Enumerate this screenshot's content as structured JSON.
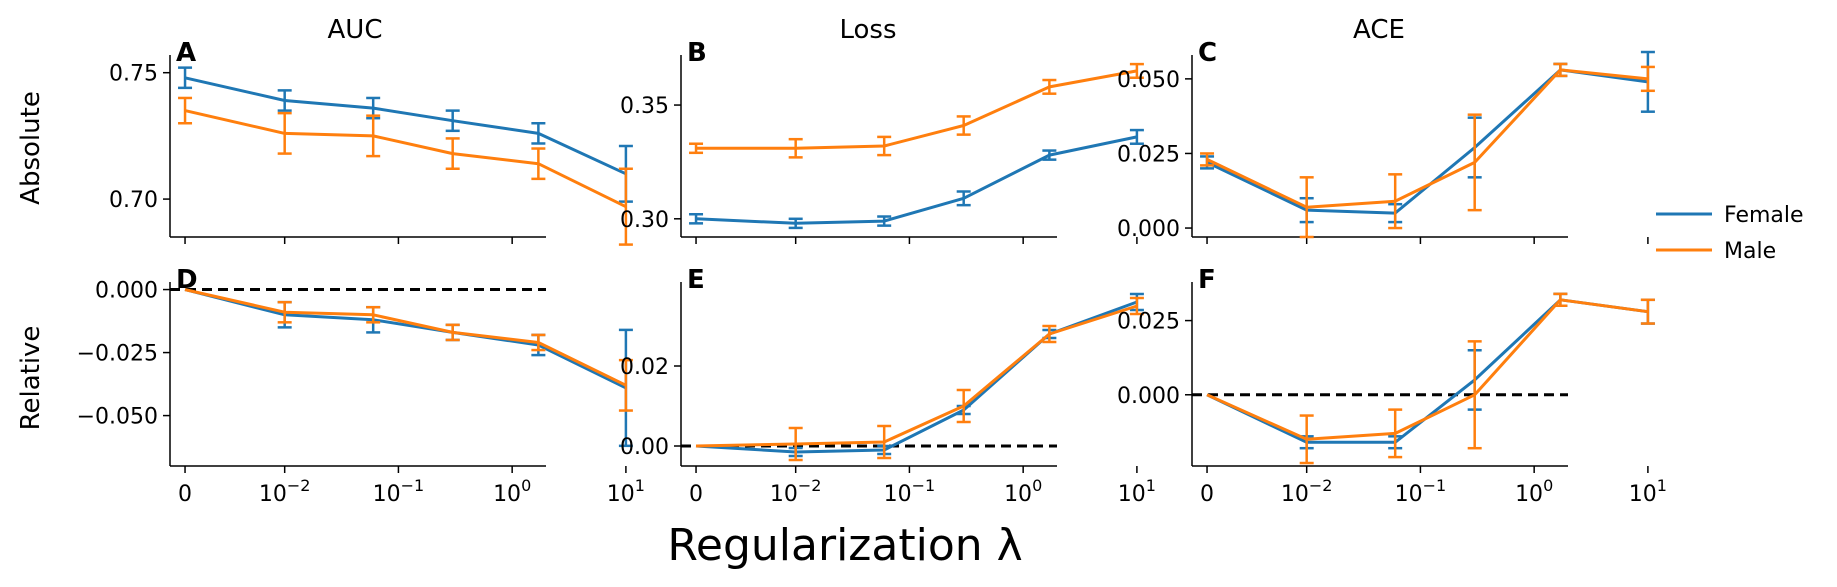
{
  "figure": {
    "column_titles": [
      "AUC",
      "Loss",
      "ACE"
    ],
    "row_labels": [
      "Absolute",
      "Relative"
    ],
    "xlabel": "Regularization λ"
  },
  "legend": {
    "entries": [
      {
        "label": "Female",
        "color": "#1f77b4"
      },
      {
        "label": "Male",
        "color": "#ff7f0e"
      }
    ]
  },
  "colors": {
    "Female": "#1f77b4",
    "Male": "#ff7f0e",
    "reference_line": "#000000"
  },
  "chart_data": [
    {
      "type": "line",
      "letter": "A",
      "title": "AUC",
      "row": "Absolute",
      "x": [
        0,
        0.01,
        0.06,
        0.3,
        1.7,
        10
      ],
      "xticklabels": [
        "0",
        "10^-2",
        "10^-1",
        "10^0",
        "10^1"
      ],
      "ylim": [
        0.685,
        0.757
      ],
      "yticks": [
        0.7,
        0.75
      ],
      "yticklabels": [
        "0.70",
        "0.75"
      ],
      "series": [
        {
          "name": "Female",
          "values": [
            0.748,
            0.739,
            0.736,
            0.731,
            0.726,
            0.71
          ],
          "err": [
            0.004,
            0.004,
            0.004,
            0.004,
            0.004,
            0.011
          ]
        },
        {
          "name": "Male",
          "values": [
            0.735,
            0.726,
            0.725,
            0.718,
            0.714,
            0.697
          ],
          "err": [
            0.005,
            0.008,
            0.008,
            0.006,
            0.006,
            0.015
          ]
        }
      ]
    },
    {
      "type": "line",
      "letter": "B",
      "title": "Loss",
      "row": "Absolute",
      "x": [
        0,
        0.01,
        0.06,
        0.3,
        1.7,
        10
      ],
      "xticklabels": [
        "0",
        "10^-2",
        "10^-1",
        "10^0",
        "10^1"
      ],
      "ylim": [
        0.292,
        0.372
      ],
      "yticks": [
        0.3,
        0.35
      ],
      "yticklabels": [
        "0.30",
        "0.35"
      ],
      "series": [
        {
          "name": "Female",
          "values": [
            0.3,
            0.298,
            0.299,
            0.309,
            0.328,
            0.336
          ],
          "err": [
            0.002,
            0.002,
            0.002,
            0.003,
            0.002,
            0.003
          ]
        },
        {
          "name": "Male",
          "values": [
            0.331,
            0.331,
            0.332,
            0.341,
            0.358,
            0.365
          ],
          "err": [
            0.002,
            0.004,
            0.004,
            0.004,
            0.003,
            0.003
          ]
        }
      ]
    },
    {
      "type": "line",
      "letter": "C",
      "title": "ACE",
      "row": "Absolute",
      "x": [
        0,
        0.01,
        0.06,
        0.3,
        1.7,
        10
      ],
      "xticklabels": [
        "0",
        "10^-2",
        "10^-1",
        "10^0",
        "10^1"
      ],
      "ylim": [
        -0.003,
        0.058
      ],
      "yticks": [
        0.0,
        0.025,
        0.05
      ],
      "yticklabels": [
        "0.000",
        "0.025",
        "0.050"
      ],
      "series": [
        {
          "name": "Female",
          "values": [
            0.022,
            0.006,
            0.005,
            0.027,
            0.053,
            0.049
          ],
          "err": [
            0.002,
            0.004,
            0.003,
            0.01,
            0.002,
            0.01
          ]
        },
        {
          "name": "Male",
          "values": [
            0.023,
            0.007,
            0.009,
            0.022,
            0.053,
            0.05
          ],
          "err": [
            0.002,
            0.01,
            0.009,
            0.016,
            0.002,
            0.004
          ]
        }
      ]
    },
    {
      "type": "line",
      "letter": "D",
      "row": "Relative",
      "x": [
        0,
        0.01,
        0.06,
        0.3,
        1.7,
        10
      ],
      "xticklabels": [
        "0",
        "10^-2",
        "10^-1",
        "10^0",
        "10^1"
      ],
      "ylim": [
        -0.07,
        0.003
      ],
      "yticks": [
        -0.05,
        -0.025,
        0.0
      ],
      "yticklabels": [
        "−0.050",
        "−0.025",
        "0.000"
      ],
      "reference_y": 0,
      "series": [
        {
          "name": "Female",
          "values": [
            0.0,
            -0.01,
            -0.012,
            -0.017,
            -0.022,
            -0.039
          ],
          "err": [
            0.0,
            0.005,
            0.005,
            0.003,
            0.004,
            0.023
          ]
        },
        {
          "name": "Male",
          "values": [
            0.0,
            -0.009,
            -0.01,
            -0.017,
            -0.021,
            -0.038
          ],
          "err": [
            0.0,
            0.004,
            0.003,
            0.003,
            0.003,
            0.01
          ]
        }
      ]
    },
    {
      "type": "line",
      "letter": "E",
      "row": "Relative",
      "x": [
        0,
        0.01,
        0.06,
        0.3,
        1.7,
        10
      ],
      "xticklabels": [
        "0",
        "10^-2",
        "10^-1",
        "10^0",
        "10^1"
      ],
      "ylim": [
        -0.005,
        0.041
      ],
      "yticks": [
        0.0,
        0.02
      ],
      "yticklabels": [
        "0.00",
        "0.02"
      ],
      "reference_y": 0,
      "series": [
        {
          "name": "Female",
          "values": [
            0.0,
            -0.0015,
            -0.001,
            0.009,
            0.028,
            0.036
          ],
          "err": [
            0.0,
            0.001,
            0.001,
            0.001,
            0.001,
            0.002
          ]
        },
        {
          "name": "Male",
          "values": [
            0.0,
            0.0005,
            0.001,
            0.01,
            0.028,
            0.035
          ],
          "err": [
            0.0,
            0.004,
            0.004,
            0.004,
            0.002,
            0.002
          ]
        }
      ]
    },
    {
      "type": "line",
      "letter": "F",
      "row": "Relative",
      "x": [
        0,
        0.01,
        0.06,
        0.3,
        1.7,
        10
      ],
      "xticklabels": [
        "0",
        "10^-2",
        "10^-1",
        "10^0",
        "10^1"
      ],
      "ylim": [
        -0.024,
        0.038
      ],
      "yticks": [
        0.0,
        0.025
      ],
      "yticklabels": [
        "0.000",
        "0.025"
      ],
      "reference_y": 0,
      "series": [
        {
          "name": "Female",
          "values": [
            0.0,
            -0.016,
            -0.016,
            0.005,
            0.032,
            0.028
          ],
          "err": [
            0.0,
            0.002,
            0.002,
            0.01,
            0.002,
            0.004
          ]
        },
        {
          "name": "Male",
          "values": [
            0.0,
            -0.015,
            -0.013,
            0.0,
            0.032,
            0.028
          ],
          "err": [
            0.0,
            0.008,
            0.008,
            0.018,
            0.002,
            0.004
          ]
        }
      ]
    }
  ]
}
